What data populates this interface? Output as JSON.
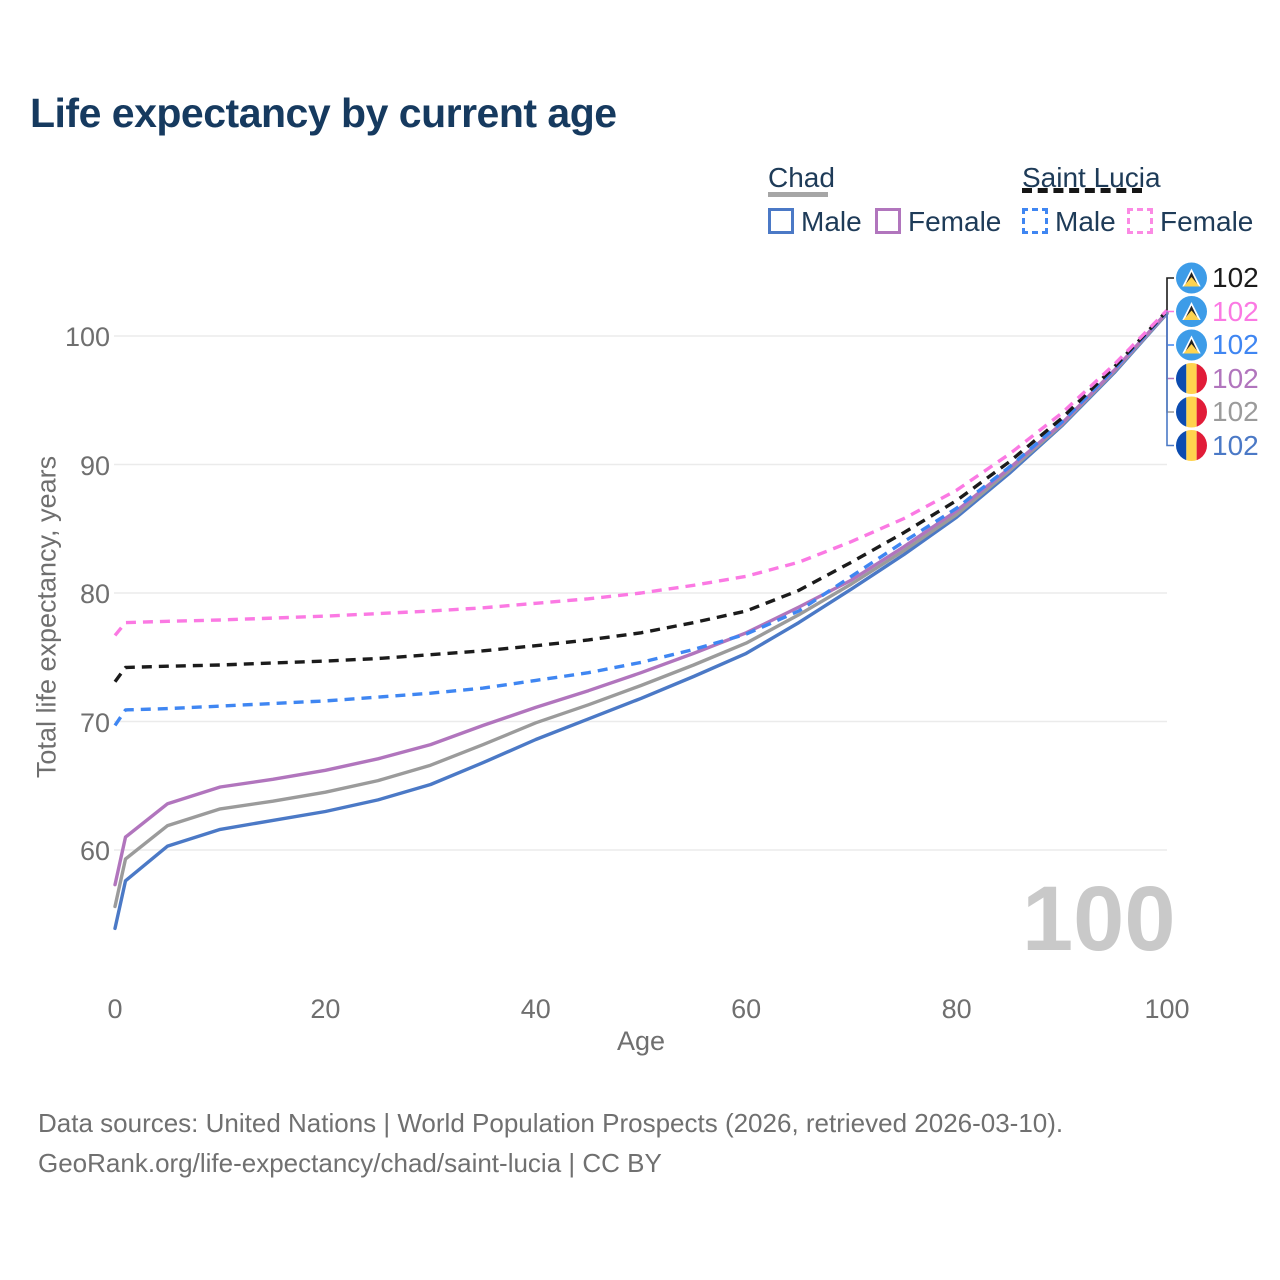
{
  "title": "Life expectancy by current age",
  "watermark": "100",
  "legend": {
    "groups": [
      {
        "label": "Chad",
        "line_style": "solid",
        "rule_color": "#a6a6a6",
        "items": [
          {
            "label": "Male",
            "color": "#4b79c6"
          },
          {
            "label": "Female",
            "color": "#b175bd"
          }
        ]
      },
      {
        "label": "Saint Lucia",
        "line_style": "dashed",
        "rule_color": "#161616",
        "items": [
          {
            "label": "Male",
            "color": "#3f86f2"
          },
          {
            "label": "Female",
            "color": "#fb8ae4"
          }
        ]
      }
    ]
  },
  "footer": {
    "line1": "Data sources: United Nations | World Population Prospects (2026, retrieved 2026-03-10).",
    "line2": "GeoRank.org/life-expectancy/chad/saint-lucia | CC BY"
  },
  "chart_data": {
    "type": "line",
    "xlabel": "Age",
    "ylabel": "Total life expectancy, years",
    "xticks": [
      0,
      20,
      40,
      60,
      80,
      100
    ],
    "yticks": [
      60,
      70,
      80,
      90,
      100
    ],
    "xlim": [
      0,
      100
    ],
    "ylim": [
      54,
      103
    ],
    "grid": "horizontal",
    "ages": [
      0,
      1,
      5,
      10,
      15,
      20,
      25,
      30,
      35,
      40,
      45,
      50,
      55,
      60,
      65,
      70,
      75,
      80,
      85,
      90,
      95,
      100
    ],
    "series": [
      {
        "id": "chad_male",
        "country": "Chad",
        "sex": "Male",
        "color": "#4b79c6",
        "style": "solid",
        "flag": "chad",
        "end_value": "102",
        "values": [
          53.9,
          57.6,
          60.3,
          61.6,
          62.3,
          63.0,
          63.9,
          65.1,
          66.8,
          68.6,
          70.2,
          71.8,
          73.5,
          75.3,
          77.7,
          80.3,
          83.0,
          85.9,
          89.3,
          93.0,
          97.15,
          101.75
        ]
      },
      {
        "id": "chad_total",
        "country": "Chad",
        "sex": "Both",
        "color": "#9b9b9b",
        "style": "solid",
        "flag": "chad",
        "end_value": "102",
        "values": [
          55.6,
          59.3,
          61.9,
          63.2,
          63.8,
          64.5,
          65.4,
          66.6,
          68.2,
          69.9,
          71.3,
          72.8,
          74.4,
          76.1,
          78.3,
          80.7,
          83.3,
          86.1,
          89.5,
          93.1,
          97.25,
          101.8
        ]
      },
      {
        "id": "chad_female",
        "country": "Chad",
        "sex": "Female",
        "color": "#b175bd",
        "style": "solid",
        "flag": "chad",
        "end_value": "102",
        "values": [
          57.3,
          61.0,
          63.6,
          64.9,
          65.5,
          66.2,
          67.1,
          68.2,
          69.7,
          71.1,
          72.4,
          73.8,
          75.3,
          76.9,
          78.9,
          81.0,
          83.6,
          86.4,
          89.7,
          93.2,
          97.35,
          101.85
        ]
      },
      {
        "id": "saint_lucia_male",
        "country": "Saint Lucia",
        "sex": "Male",
        "color": "#3f86f2",
        "style": "dashed",
        "flag": "saint-lucia",
        "end_value": "102",
        "values": [
          69.7,
          70.9,
          71.0,
          71.2,
          71.4,
          71.6,
          71.9,
          72.2,
          72.6,
          73.2,
          73.8,
          74.6,
          75.6,
          76.8,
          78.6,
          81.3,
          84.0,
          86.6,
          89.8,
          93.3,
          97.45,
          101.9
        ]
      },
      {
        "id": "saint_lucia_total",
        "country": "Saint Lucia",
        "sex": "Both",
        "color": "#1b1b1b",
        "style": "dashed",
        "flag": "saint-lucia",
        "end_value": "102",
        "values": [
          73.1,
          74.2,
          74.3,
          74.4,
          74.55,
          74.7,
          74.9,
          75.2,
          75.5,
          75.9,
          76.35,
          76.9,
          77.7,
          78.6,
          80.2,
          82.4,
          84.7,
          87.2,
          90.2,
          93.6,
          97.6,
          101.95
        ]
      },
      {
        "id": "saint_lucia_female",
        "country": "Saint Lucia",
        "sex": "Female",
        "color": "#fb79e3",
        "style": "dashed",
        "flag": "saint-lucia",
        "end_value": "102",
        "values": [
          76.7,
          77.7,
          77.8,
          77.9,
          78.05,
          78.2,
          78.4,
          78.6,
          78.85,
          79.2,
          79.55,
          80.0,
          80.6,
          81.3,
          82.4,
          84.0,
          85.8,
          88.0,
          90.8,
          94.0,
          97.8,
          102.0
        ]
      }
    ],
    "end_labels_order": [
      "saint_lucia_total",
      "saint_lucia_female",
      "saint_lucia_male",
      "chad_female",
      "chad_total",
      "chad_male"
    ],
    "flag_colors": {
      "chad": {
        "blue": "#0c4cb0",
        "gold": "#ffd34e",
        "red": "#e11c38"
      },
      "saint_lucia": {
        "field": "#3d9ce8",
        "white": "#ffffff",
        "black": "#222222",
        "gold": "#ffd34e"
      }
    }
  }
}
